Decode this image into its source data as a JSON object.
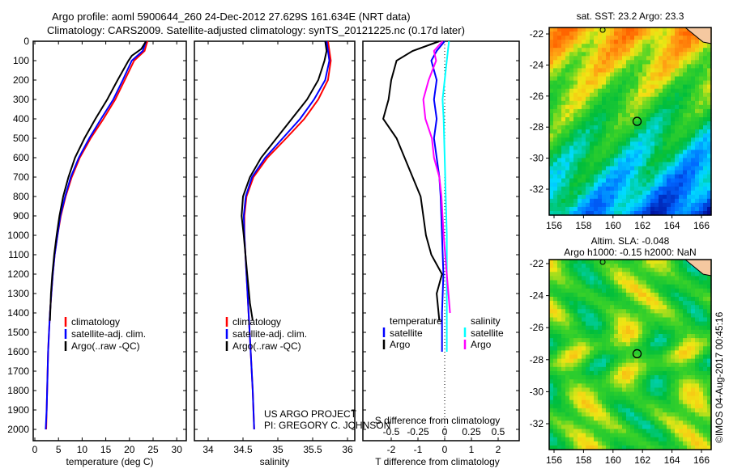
{
  "title_line1": "Argo profile: aoml 5900644_260 24-Dec-2012 27.629S 161.634E (NRT data)",
  "title_line2": "Climatology: CARS2009. Satellite-adjusted climatology: synTS_20121225.nc (0.17d later)",
  "credit": "US ARGO PROJECT",
  "pi": "PI: GREGORY C. JOHNSON",
  "copyright": "©IMOS 04-Aug-2017 00:45:16",
  "colors": {
    "climatology": "#ff0000",
    "satellite": "#0000ff",
    "argo": "#000000",
    "sal_satellite": "#00ffff",
    "sal_argo": "#ff00ff"
  },
  "chart_data": [
    {
      "type": "line",
      "title": "",
      "xlabel": "temperature (deg C)",
      "ylabel": "",
      "xlim": [
        -0.3,
        32
      ],
      "ylim": [
        2060,
        0
      ],
      "xticks": [
        "0",
        "5",
        "10",
        "15",
        "20",
        "25",
        "30"
      ],
      "yticks": [
        "0",
        "100",
        "200",
        "300",
        "400",
        "500",
        "600",
        "700",
        "800",
        "900",
        "1000",
        "1100",
        "1200",
        "1300",
        "1400",
        "1500",
        "1600",
        "1700",
        "1800",
        "1900",
        "2000"
      ],
      "legend": [
        "climatology",
        "satellite-adj. clim.",
        "Argo(..raw -QC)"
      ],
      "series": [
        {
          "name": "climatology",
          "color": "#ff0000",
          "points": [
            [
              23.8,
              0
            ],
            [
              23.2,
              50
            ],
            [
              21,
              100
            ],
            [
              19,
              200
            ],
            [
              17,
              300
            ],
            [
              14.5,
              400
            ],
            [
              11.8,
              500
            ],
            [
              9.5,
              600
            ],
            [
              7.8,
              700
            ],
            [
              6.5,
              800
            ],
            [
              5.5,
              900
            ],
            [
              4.8,
              1000
            ],
            [
              4.2,
              1100
            ],
            [
              3.8,
              1200
            ],
            [
              3.5,
              1300
            ],
            [
              3.2,
              1400
            ],
            [
              3,
              1500
            ],
            [
              2.8,
              1600
            ],
            [
              2.7,
              1700
            ],
            [
              2.6,
              1800
            ],
            [
              2.5,
              1900
            ],
            [
              2.4,
              2000
            ]
          ]
        },
        {
          "name": "satellite-adj. clim.",
          "color": "#0000ff",
          "points": [
            [
              23.5,
              0
            ],
            [
              22.8,
              50
            ],
            [
              20.5,
              100
            ],
            [
              18.6,
              200
            ],
            [
              16.6,
              300
            ],
            [
              14,
              400
            ],
            [
              11.5,
              500
            ],
            [
              9.3,
              600
            ],
            [
              7.6,
              700
            ],
            [
              6.4,
              800
            ],
            [
              5.4,
              900
            ],
            [
              4.8,
              1000
            ],
            [
              4.2,
              1100
            ],
            [
              3.8,
              1200
            ],
            [
              3.5,
              1300
            ],
            [
              3.2,
              1400
            ],
            [
              3,
              1500
            ],
            [
              2.8,
              1600
            ],
            [
              2.7,
              1700
            ],
            [
              2.6,
              1800
            ],
            [
              2.5,
              1900
            ],
            [
              2.3,
              2000
            ]
          ]
        },
        {
          "name": "Argo(..raw -QC)",
          "color": "#000000",
          "points": [
            [
              23.5,
              0
            ],
            [
              22.5,
              40
            ],
            [
              20.5,
              75
            ],
            [
              19.8,
              100
            ],
            [
              17.5,
              200
            ],
            [
              15.3,
              300
            ],
            [
              12.8,
              400
            ],
            [
              10.5,
              500
            ],
            [
              8.5,
              600
            ],
            [
              7.1,
              700
            ],
            [
              6,
              800
            ],
            [
              5.2,
              900
            ],
            [
              4.6,
              1000
            ],
            [
              4.1,
              1100
            ],
            [
              3.7,
              1200
            ],
            [
              3.4,
              1300
            ],
            [
              3.2,
              1440
            ]
          ]
        }
      ]
    },
    {
      "type": "line",
      "title": "",
      "xlabel": "salinity",
      "ylabel": "",
      "xlim": [
        33.8,
        36.1
      ],
      "ylim": [
        2060,
        0
      ],
      "xticks": [
        "34",
        "34.5",
        "35",
        "35.5",
        "36"
      ],
      "legend": [
        "climatology",
        "satellite-adj. clim.",
        "Argo(..raw -QC)"
      ],
      "series": [
        {
          "name": "climatology",
          "color": "#ff0000",
          "points": [
            [
              35.72,
              0
            ],
            [
              35.76,
              100
            ],
            [
              35.72,
              200
            ],
            [
              35.58,
              300
            ],
            [
              35.38,
              400
            ],
            [
              35.12,
              500
            ],
            [
              34.85,
              600
            ],
            [
              34.65,
              700
            ],
            [
              34.55,
              800
            ],
            [
              34.52,
              900
            ],
            [
              34.52,
              1000
            ],
            [
              34.55,
              1200
            ],
            [
              34.58,
              1400
            ],
            [
              34.61,
              1600
            ],
            [
              34.64,
              1800
            ],
            [
              34.66,
              2000
            ]
          ]
        },
        {
          "name": "satellite-adj. clim.",
          "color": "#0000ff",
          "points": [
            [
              35.7,
              0
            ],
            [
              35.74,
              100
            ],
            [
              35.68,
              200
            ],
            [
              35.52,
              300
            ],
            [
              35.32,
              400
            ],
            [
              35.07,
              500
            ],
            [
              34.82,
              600
            ],
            [
              34.63,
              700
            ],
            [
              34.54,
              800
            ],
            [
              34.51,
              900
            ],
            [
              34.52,
              1000
            ],
            [
              34.55,
              1200
            ],
            [
              34.58,
              1400
            ],
            [
              34.61,
              1600
            ],
            [
              34.64,
              1800
            ],
            [
              34.66,
              2000
            ]
          ]
        },
        {
          "name": "Argo(..raw -QC)",
          "color": "#000000",
          "points": [
            [
              35.68,
              0
            ],
            [
              35.7,
              50
            ],
            [
              35.67,
              100
            ],
            [
              35.58,
              200
            ],
            [
              35.42,
              300
            ],
            [
              35.2,
              400
            ],
            [
              34.98,
              500
            ],
            [
              34.76,
              600
            ],
            [
              34.6,
              700
            ],
            [
              34.5,
              800
            ],
            [
              34.48,
              900
            ],
            [
              34.51,
              1000
            ],
            [
              34.56,
              1200
            ],
            [
              34.6,
              1350
            ],
            [
              34.64,
              1440
            ]
          ]
        }
      ]
    },
    {
      "type": "line",
      "title": "",
      "xlabel": "T difference from climatology",
      "xlabel2": "S difference from climatology",
      "xlim": [
        -3.06,
        2.8
      ],
      "ylim": [
        2060,
        0
      ],
      "xticks": [
        "-2",
        "-1",
        "0",
        "1",
        "2"
      ],
      "xticks2": [
        "-0.5",
        "-0.25",
        "0",
        "0.25",
        "0.5"
      ],
      "legend_temperature": "temperature",
      "legend_salinity": "salinity",
      "legend_satellite": "satellite",
      "legend_argo": "Argo",
      "series": [
        {
          "name": "T satellite",
          "color": "#0000ff",
          "axis": "T",
          "points": [
            [
              0,
              0
            ],
            [
              -0.3,
              50
            ],
            [
              -0.5,
              100
            ],
            [
              -0.3,
              200
            ],
            [
              -0.4,
              300
            ],
            [
              -0.3,
              400
            ],
            [
              -0.4,
              500
            ],
            [
              -0.3,
              600
            ],
            [
              -0.2,
              700
            ],
            [
              -0.15,
              800
            ],
            [
              -0.1,
              1000
            ],
            [
              -0.05,
              1200
            ],
            [
              -0.1,
              1400
            ],
            [
              -0.1,
              1600
            ]
          ]
        },
        {
          "name": "T Argo",
          "color": "#000000",
          "axis": "T",
          "points": [
            [
              -0.2,
              0
            ],
            [
              -1.2,
              50
            ],
            [
              -1.8,
              100
            ],
            [
              -2,
              200
            ],
            [
              -2.1,
              300
            ],
            [
              -2.3,
              400
            ],
            [
              -1.8,
              500
            ],
            [
              -1.5,
              600
            ],
            [
              -1.2,
              700
            ],
            [
              -0.9,
              800
            ],
            [
              -0.8,
              900
            ],
            [
              -0.7,
              1000
            ],
            [
              -0.5,
              1100
            ],
            [
              -0.1,
              1200
            ],
            [
              -0.3,
              1300
            ],
            [
              -0.2,
              1440
            ]
          ]
        },
        {
          "name": "S satellite",
          "color": "#00ffff",
          "axis": "S",
          "points": [
            [
              0.04,
              0
            ],
            [
              0.02,
              100
            ],
            [
              0.0,
              200
            ],
            [
              -0.02,
              300
            ],
            [
              -0.01,
              400
            ],
            [
              0,
              600
            ],
            [
              0.01,
              800
            ],
            [
              0.02,
              1000
            ],
            [
              0.02,
              1200
            ],
            [
              0.02,
              1400
            ],
            [
              0.02,
              1600
            ]
          ]
        },
        {
          "name": "S Argo",
          "color": "#ff00ff",
          "axis": "S",
          "points": [
            [
              -0.02,
              0
            ],
            [
              -0.1,
              50
            ],
            [
              -0.08,
              100
            ],
            [
              -0.15,
              200
            ],
            [
              -0.2,
              300
            ],
            [
              -0.18,
              400
            ],
            [
              -0.12,
              500
            ],
            [
              -0.1,
              600
            ],
            [
              -0.05,
              700
            ],
            [
              -0.03,
              800
            ],
            [
              -0.01,
              1000
            ],
            [
              0.02,
              1200
            ],
            [
              0.05,
              1400
            ]
          ]
        }
      ]
    },
    {
      "type": "heatmap",
      "title": "sat. SST: 23.2 Argo: 23.3",
      "xlim": [
        155.7,
        167.3
      ],
      "ylim": [
        -33.7,
        -21.7
      ],
      "xticks": [
        "156",
        "158",
        "160",
        "162",
        "164",
        "166"
      ],
      "yticks": [
        "-22",
        "-24",
        "-26",
        "-28",
        "-30",
        "-32"
      ],
      "argo_position": [
        161.634,
        -27.629
      ]
    },
    {
      "type": "heatmap",
      "title": "Altim. SLA: -0.048",
      "subtitle": "Argo h1000: -0.15 h2000: NaN",
      "xlim": [
        155.7,
        167.3
      ],
      "ylim": [
        -33.7,
        -21.7
      ],
      "xticks": [
        "156",
        "158",
        "160",
        "162",
        "164",
        "166"
      ],
      "yticks": [
        "-22",
        "-24",
        "-26",
        "-28",
        "-30",
        "-32"
      ],
      "argo_position": [
        161.634,
        -27.629
      ]
    }
  ]
}
